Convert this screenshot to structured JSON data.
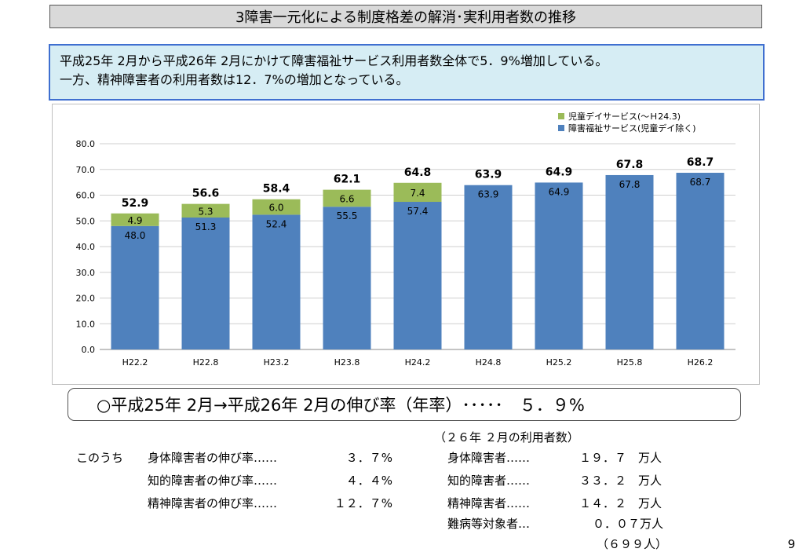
{
  "title": "3障害一元化による制度格差の解消･実利用者数の推移",
  "summary": {
    "line1": "平成25年 2月から平成26年 2月にかけて障害福祉サービス利用者数全体で5．9%増加している。",
    "line2": "一方、精神障害者の利用者数は12．7%の増加となっている。"
  },
  "chart_data": {
    "type": "bar",
    "stacked": true,
    "categories": [
      "H22.2",
      "H22.8",
      "H23.2",
      "H23.8",
      "H24.2",
      "H24.8",
      "H25.2",
      "H25.8",
      "H26.2"
    ],
    "series": [
      {
        "name": "障害福祉サービス(児童デイ除く)",
        "color": "#4f81bd",
        "values": [
          48.0,
          51.3,
          52.4,
          55.5,
          57.4,
          63.9,
          64.9,
          67.8,
          68.7
        ]
      },
      {
        "name": "児童デイサービス(～Ｈ24.3)",
        "color": "#9bbb59",
        "values": [
          4.9,
          5.3,
          6.0,
          6.6,
          7.4,
          null,
          null,
          null,
          null
        ]
      }
    ],
    "totals": [
      52.9,
      56.6,
      58.4,
      62.1,
      64.8,
      63.9,
      64.9,
      67.8,
      68.7
    ],
    "ylim": [
      0,
      80
    ],
    "yticks": [
      "0.0",
      "10.0",
      "20.0",
      "30.0",
      "40.0",
      "50.0",
      "60.0",
      "70.0",
      "80.0"
    ],
    "grid": true,
    "legend_position": "top-right"
  },
  "growth_statement": "○平成25年 2月→平成26年 2月の伸び率（年率）･････　５．９%",
  "breakdown": {
    "prefix": "このうち",
    "rates": [
      {
        "label": "身体障害者の伸び率……",
        "value": "３．７%"
      },
      {
        "label": "知的障害者の伸び率……",
        "value": "４．４%"
      },
      {
        "label": "精神障害者の伸び率……",
        "value": "１２．７%"
      }
    ]
  },
  "users": {
    "header": "（２６年 ２月の利用者数）",
    "rows": [
      {
        "label": "身体障害者……",
        "value": "１９．７　万人"
      },
      {
        "label": "知的障害者……",
        "value": "３３．２　万人"
      },
      {
        "label": "精神障害者……",
        "value": "１４．２　万人"
      },
      {
        "label": "難病等対象者…",
        "value": "０．０７万人"
      }
    ],
    "note": "（６９９人）"
  },
  "page_number": "9"
}
